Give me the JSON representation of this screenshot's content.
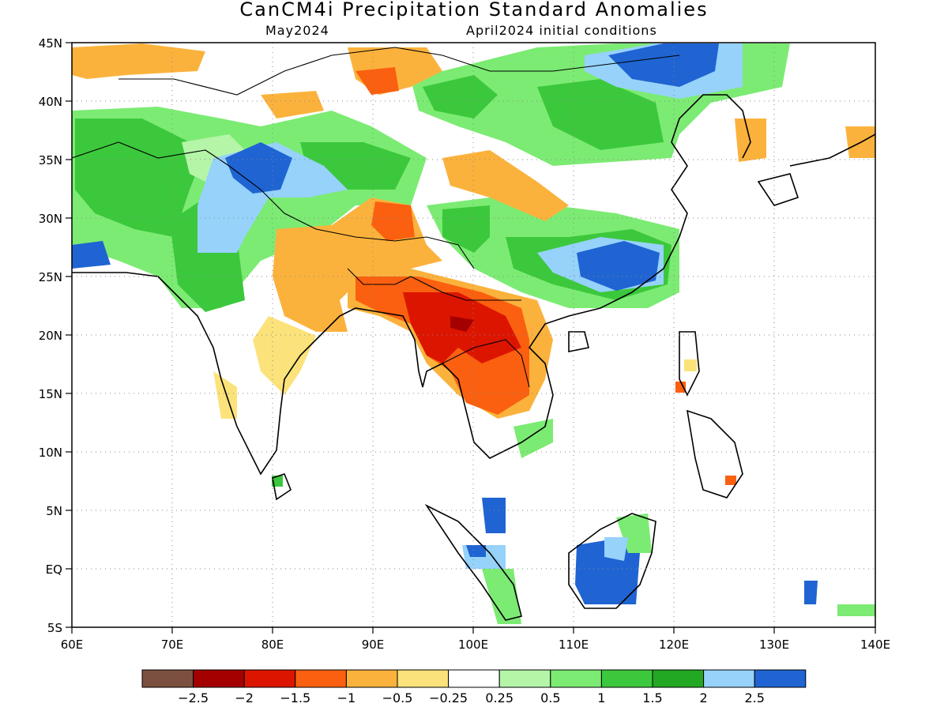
{
  "title": "CanCM4i Precipitation Standard Anomalies",
  "subtitle_left": "May2024",
  "subtitle_right": "April2024 initial conditions",
  "map": {
    "lon_range": [
      60,
      140
    ],
    "lat_range": [
      -5,
      45
    ],
    "lon_ticks": [
      "60E",
      "70E",
      "80E",
      "90E",
      "100E",
      "110E",
      "120E",
      "130E",
      "140E"
    ],
    "lat_ticks": [
      "5S",
      "EQ",
      "5N",
      "10N",
      "15N",
      "20N",
      "25N",
      "30N",
      "35N",
      "40N",
      "45N"
    ],
    "gridlines": "dotted"
  },
  "colorbar": {
    "colors": [
      "#7b5040",
      "#a50000",
      "#dc1500",
      "#fa6010",
      "#fbb23c",
      "#fce27a",
      "#ffffff",
      "#b5f5a8",
      "#7ceb73",
      "#3cc83c",
      "#22a822",
      "#96d2fa",
      "#1f64d2"
    ],
    "labels": [
      "−2.5",
      "−2",
      "−1.5",
      "−1",
      "−0.5",
      "−0.25",
      "0.25",
      "0.5",
      "1",
      "1.5",
      "2",
      "2.5"
    ]
  },
  "anomaly_colors": {
    "strong_dry": "#dc1500",
    "dry": "#fa6010",
    "moderate_dry": "#fbb23c",
    "slight_dry": "#fce27a",
    "slight_wet": "#b5f5a8",
    "wet": "#7ceb73",
    "moderate_wet": "#3cc83c",
    "very_wet": "#22a822",
    "extreme_wet_light": "#96d2fa",
    "extreme_wet": "#1f64d2"
  }
}
